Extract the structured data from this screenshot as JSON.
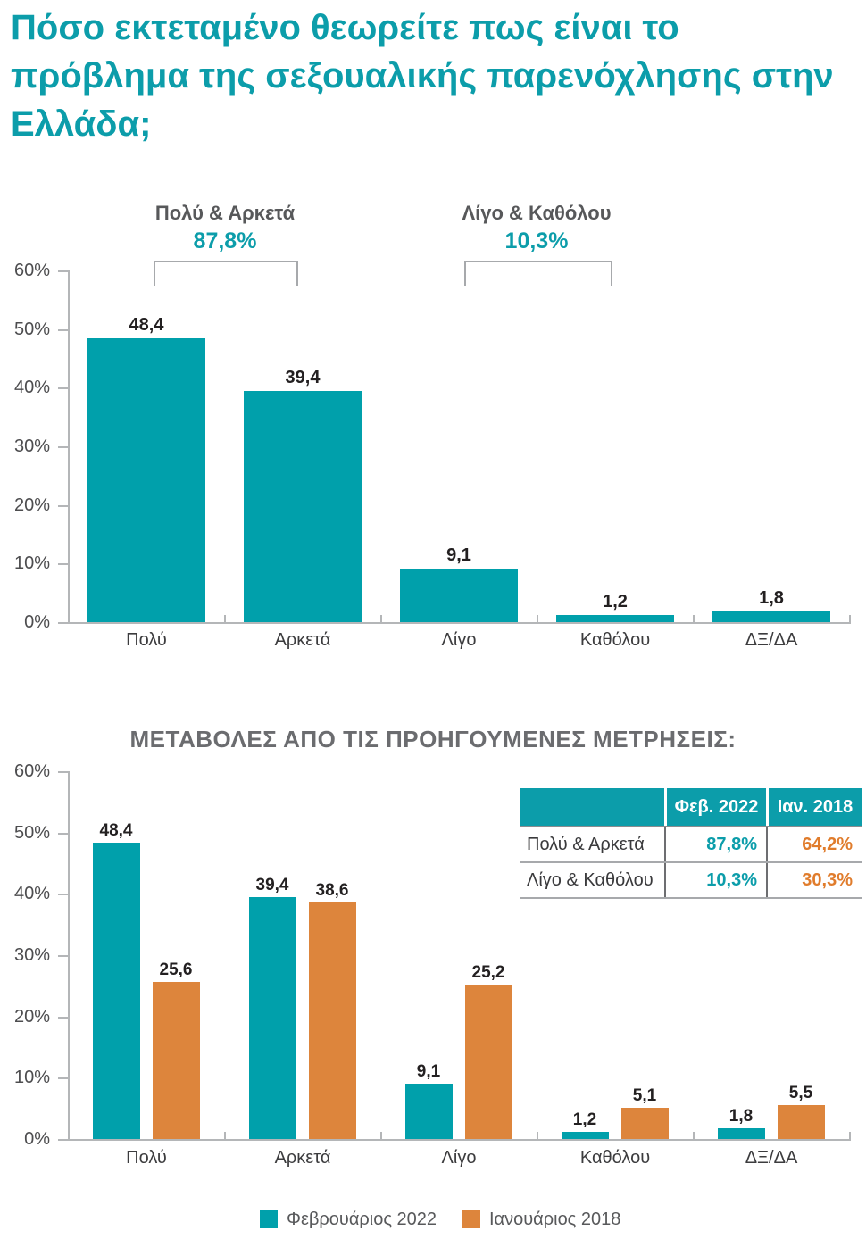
{
  "title": "Πόσο εκτεταμένο θεωρείτε πως είναι το πρόβλημα της σεξουαλικής παρενόχλησης στην Ελλάδα;",
  "colors": {
    "bar_teal": "#00A0AB",
    "bar_orange": "#DD853C",
    "accent_teal": "#0C9DAA",
    "table_value_orange": "#E07C2C",
    "axis": "#B4B6B8",
    "axis_text": "#4D4D4F",
    "category_text": "#3C3C3E",
    "value_text": "#232021",
    "muted_text": "#58595B",
    "heading_gray": "#6B6C6F",
    "bracket": "#A7A9AC"
  },
  "table": {
    "headers": [
      "",
      "Φεβ. 2022",
      "Ιαν. 2018"
    ],
    "rows": [
      {
        "label": "Πολύ & Αρκετά",
        "feb_2022": "87,8%",
        "jan_2018": "64,2%"
      },
      {
        "label": "Λίγο & Καθόλου",
        "feb_2022": "10,3%",
        "jan_2018": "30,3%"
      }
    ]
  },
  "chart_data": [
    {
      "type": "bar",
      "title": "",
      "categories": [
        "Πολύ",
        "Αρκετά",
        "Λίγο",
        "Καθόλου",
        "ΔΞ/ΔΑ"
      ],
      "values": [
        48.4,
        39.4,
        9.1,
        1.2,
        1.8
      ],
      "value_labels": [
        "48,4",
        "39,4",
        "9,1",
        "1,2",
        "1,8"
      ],
      "bar_color": "#00A0AB",
      "ylim": [
        0,
        60
      ],
      "yticks": [
        0,
        10,
        20,
        30,
        40,
        50,
        60
      ],
      "ytick_format": "percent",
      "grid": false,
      "annotations": [
        {
          "label": "Πολύ & Αρκετά",
          "value": "87,8%",
          "spans": [
            "Πολύ",
            "Αρκετά"
          ]
        },
        {
          "label": "Λίγο & Καθόλου",
          "value": "10,3%",
          "spans": [
            "Λίγο",
            "Καθόλου"
          ]
        }
      ]
    },
    {
      "type": "bar",
      "title": "ΜΕΤΑΒΟΛΕΣ ΑΠΟ ΤΙΣ ΠΡΟΗΓΟΥΜΕΝΕΣ ΜΕΤΡΗΣΕΙΣ:",
      "categories": [
        "Πολύ",
        "Αρκετά",
        "Λίγο",
        "Καθόλου",
        "ΔΞ/ΔΑ"
      ],
      "series": [
        {
          "name": "Φεβρουάριος 2022",
          "color": "#00A0AB",
          "values": [
            48.4,
            39.4,
            9.1,
            1.2,
            1.8
          ],
          "value_labels": [
            "48,4",
            "39,4",
            "9,1",
            "1,2",
            "1,8"
          ]
        },
        {
          "name": "Ιανουάριος 2018",
          "color": "#DD853C",
          "values": [
            25.6,
            38.6,
            25.2,
            5.1,
            5.5
          ],
          "value_labels": [
            "25,6",
            "38,6",
            "25,2",
            "5,1",
            "5,5"
          ]
        }
      ],
      "ylim": [
        0,
        60
      ],
      "yticks": [
        0,
        10,
        20,
        30,
        40,
        50,
        60
      ],
      "ytick_format": "percent",
      "grid": false,
      "legend_position": "bottom"
    }
  ]
}
